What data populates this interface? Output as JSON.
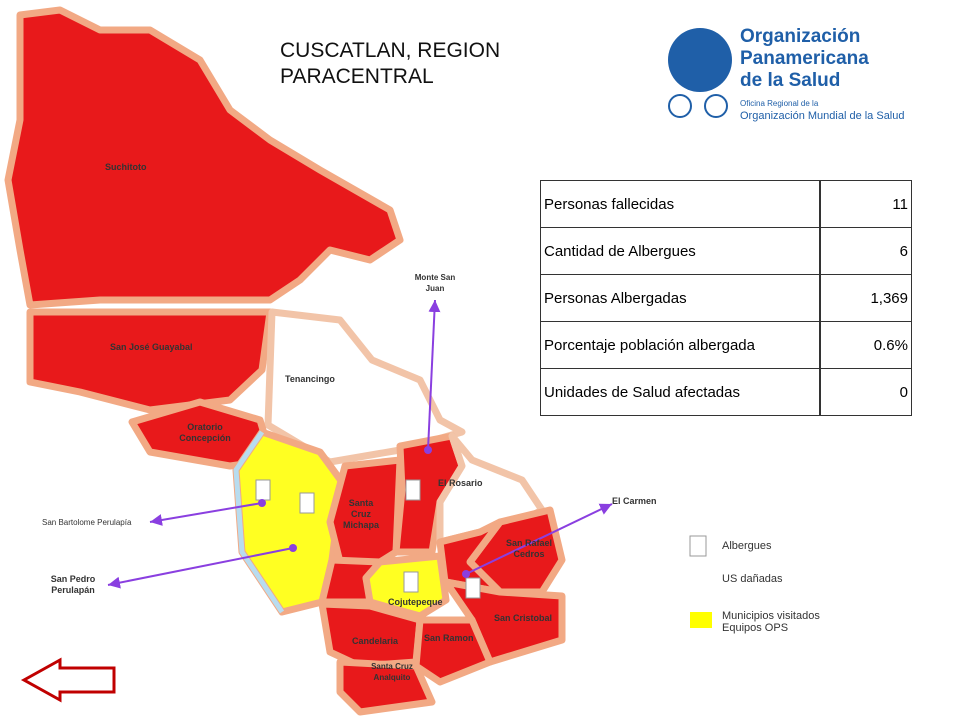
{
  "title": "CUSCATLAN, REGION PARACENTRAL",
  "logo": {
    "line1": "Organización",
    "line2": "Panamericana",
    "line3": "de la Salud",
    "sub1": "Oficina Regional de la",
    "sub2": "Organización Mundial de la Salud"
  },
  "table": {
    "rows": [
      [
        "Personas fallecidas",
        "11"
      ],
      [
        "Cantidad de Albergues",
        "6"
      ],
      [
        "Personas Albergadas",
        "1,369"
      ],
      [
        "Porcentaje población albergada",
        "0.6%"
      ],
      [
        "Unidades de Salud afectadas",
        "0"
      ]
    ]
  },
  "map": {
    "labels": {
      "suchitoto": "Suchitoto",
      "guayabal": "San José Guayabal",
      "tenancingo": "Tenancingo",
      "oratorio": "Oratorio Concepción",
      "monte": "Monte San Juan",
      "rosario": "El Rosario",
      "michapa": "Santa Cruz Michapa",
      "bartolome": "San Bartolome Perulapía",
      "pedro": "San Pedro Perulapán",
      "carmen": "El Carmen",
      "cedros": "San Rafael Cedros",
      "cojutepeque": "Cojutepeque",
      "cristobal": "San Cristobal",
      "candelaria": "Candelaria",
      "ramon": "San Ramon",
      "analquito": "Santa Cruz Analquito"
    }
  },
  "legend": {
    "albergues": "Albergues",
    "us": "US dañadas",
    "visitados": "Municipios visitados Equipos OPS"
  }
}
